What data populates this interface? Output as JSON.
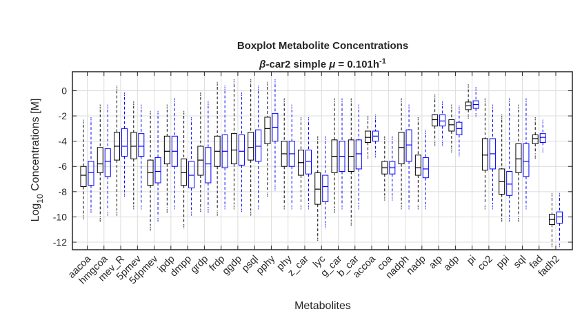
{
  "chart_data": {
    "type": "box",
    "title": "Boxplot Metabolite Concentrations",
    "subtitle": {
      "greek_prefix": "β",
      "text1": "-car2 simple ",
      "greek_mu": "μ",
      "text2": " = 0.101h",
      "superscript": "-1"
    },
    "xlabel": "Metabolites",
    "ylabel": {
      "prefix": "Log",
      "subscript": "10",
      "suffix": " Concentrations [M]"
    },
    "ylim": [
      -12.6,
      1.5
    ],
    "yticks": [
      0,
      -2,
      -4,
      -6,
      -8,
      -10,
      -12
    ],
    "grid": true,
    "series_colors": [
      "#000000",
      "#0000ff"
    ],
    "categories": [
      "aacoa",
      "hmgcoa",
      "mev_R",
      "5pmev",
      "5dpmev",
      "ipdp",
      "dmpp",
      "grdp",
      "frdp",
      "ggdp",
      "psql",
      "pphy",
      "phy",
      "z_car",
      "lyc",
      "g_car",
      "b_car",
      "accoa",
      "coa",
      "nadph",
      "nadp",
      "atp",
      "adp",
      "pi",
      "co2",
      "ppi",
      "sql",
      "fad",
      "fadh2"
    ],
    "series": [
      {
        "boxes": [
          {
            "low": -9.8,
            "q1": -7.6,
            "med": -6.7,
            "q3": -6.0,
            "high": -2.7
          },
          {
            "low": -10.0,
            "q1": -6.5,
            "med": -5.8,
            "q3": -4.5,
            "high": -1.5
          },
          {
            "low": -9.5,
            "q1": -5.5,
            "med": -4.4,
            "q3": -3.3,
            "high": 0.0
          },
          {
            "low": -9.0,
            "q1": -5.4,
            "med": -4.4,
            "q3": -3.3,
            "high": -1.2
          },
          {
            "low": -10.7,
            "q1": -7.5,
            "med": -6.5,
            "q3": -5.5,
            "high": -2.0
          },
          {
            "low": -9.3,
            "q1": -5.8,
            "med": -4.8,
            "q3": -3.6,
            "high": -1.5
          },
          {
            "low": -10.5,
            "q1": -7.5,
            "med": -6.5,
            "q3": -5.4,
            "high": -2.0
          },
          {
            "low": -9.2,
            "q1": -6.7,
            "med": -5.5,
            "q3": -4.4,
            "high": -0.5
          },
          {
            "low": -9.5,
            "q1": -6.0,
            "med": -4.8,
            "q3": -3.6,
            "high": 0.3
          },
          {
            "low": -9.0,
            "q1": -5.8,
            "med": -4.7,
            "q3": -3.4,
            "high": 0.5
          },
          {
            "low": -9.5,
            "q1": -5.5,
            "med": -4.5,
            "q3": -3.3,
            "high": 0.5
          },
          {
            "low": -8.0,
            "q1": -4.2,
            "med": -3.0,
            "q3": -2.1,
            "high": 0.3
          },
          {
            "low": -9.0,
            "q1": -6.0,
            "med": -5.0,
            "q3": -4.0,
            "high": -1.0
          },
          {
            "low": -9.0,
            "q1": -6.7,
            "med": -5.7,
            "q3": -4.7,
            "high": -2.5
          },
          {
            "low": -11.5,
            "q1": -9.0,
            "med": -7.8,
            "q3": -6.5,
            "high": -4.0
          },
          {
            "low": -9.3,
            "q1": -6.5,
            "med": -5.2,
            "q3": -3.9,
            "high": -1.0
          },
          {
            "low": -10.3,
            "q1": -6.4,
            "med": -5.2,
            "q3": -3.9,
            "high": -1.0
          },
          {
            "low": -5.0,
            "q1": -4.1,
            "med": -3.7,
            "q3": -3.2,
            "high": -2.4
          },
          {
            "low": -8.3,
            "q1": -6.6,
            "med": -6.1,
            "q3": -5.6,
            "high": -4.0
          },
          {
            "low": -9.0,
            "q1": -5.8,
            "med": -4.5,
            "q3": -3.3,
            "high": -1.0
          },
          {
            "low": -9.0,
            "q1": -6.7,
            "med": -6.1,
            "q3": -5.1,
            "high": -2.5
          },
          {
            "low": -4.0,
            "q1": -2.8,
            "med": -2.3,
            "q3": -1.9,
            "high": -0.7
          },
          {
            "low": -4.5,
            "q1": -3.2,
            "med": -2.7,
            "q3": -2.3,
            "high": -1.5
          },
          {
            "low": -1.8,
            "q1": -1.5,
            "med": -1.2,
            "q3": -0.9,
            "high": 0.1
          },
          {
            "low": -9.0,
            "q1": -6.3,
            "med": -5.1,
            "q3": -3.8,
            "high": -1.0
          },
          {
            "low": -10.0,
            "q1": -8.2,
            "med": -7.2,
            "q3": -6.2,
            "high": -2.3
          },
          {
            "low": -10.0,
            "q1": -6.5,
            "med": -5.4,
            "q3": -4.2,
            "high": -1.5
          },
          {
            "low": -5.0,
            "q1": -4.2,
            "med": -3.8,
            "q3": -3.5,
            "high": -2.5
          },
          {
            "low": -12.0,
            "q1": -10.6,
            "med": -10.2,
            "q3": -9.8,
            "high": -8.5
          }
        ]
      },
      {
        "boxes": [
          {
            "low": -9.3,
            "q1": -7.5,
            "med": -6.5,
            "q3": -5.6,
            "high": -2.5
          },
          {
            "low": -9.5,
            "q1": -6.8,
            "med": -5.6,
            "q3": -4.6,
            "high": -1.5
          },
          {
            "low": -8.0,
            "q1": -5.2,
            "med": -4.4,
            "q3": -3.0,
            "high": -0.5
          },
          {
            "low": -9.0,
            "q1": -5.2,
            "med": -4.4,
            "q3": -3.4,
            "high": -1.5
          },
          {
            "low": -10.0,
            "q1": -7.3,
            "med": -6.4,
            "q3": -5.3,
            "high": -2.0
          },
          {
            "low": -9.0,
            "q1": -6.0,
            "med": -4.8,
            "q3": -3.6,
            "high": -1.0
          },
          {
            "low": -9.5,
            "q1": -7.7,
            "med": -6.7,
            "q3": -5.6,
            "high": -2.5
          },
          {
            "low": -9.3,
            "q1": -7.3,
            "med": -5.8,
            "q3": -4.5,
            "high": -1.2
          },
          {
            "low": -9.0,
            "q1": -6.1,
            "med": -4.8,
            "q3": -3.5,
            "high": 0.0
          },
          {
            "low": -9.2,
            "q1": -5.9,
            "med": -4.8,
            "q3": -3.5,
            "high": -0.5
          },
          {
            "low": -9.0,
            "q1": -5.6,
            "med": -4.4,
            "q3": -3.1,
            "high": 0.0
          },
          {
            "low": -7.5,
            "q1": -4.0,
            "med": -2.9,
            "q3": -1.8,
            "high": 0.5
          },
          {
            "low": -9.0,
            "q1": -6.0,
            "med": -5.0,
            "q3": -4.0,
            "high": -1.5
          },
          {
            "low": -9.0,
            "q1": -6.6,
            "med": -5.6,
            "q3": -4.7,
            "high": -2.5
          },
          {
            "low": -10.5,
            "q1": -8.8,
            "med": -7.6,
            "q3": -6.7,
            "high": -4.0
          },
          {
            "low": -9.0,
            "q1": -6.4,
            "med": -5.2,
            "q3": -4.0,
            "high": -1.0
          },
          {
            "low": -9.0,
            "q1": -6.2,
            "med": -5.0,
            "q3": -3.9,
            "high": -1.5
          },
          {
            "low": -4.9,
            "q1": -4.0,
            "med": -3.6,
            "q3": -3.2,
            "high": -2.3
          },
          {
            "low": -8.3,
            "q1": -6.6,
            "med": -6.1,
            "q3": -5.6,
            "high": -4.0
          },
          {
            "low": -9.0,
            "q1": -5.6,
            "med": -4.3,
            "q3": -3.1,
            "high": -1.5
          },
          {
            "low": -9.0,
            "q1": -6.9,
            "med": -6.2,
            "q3": -5.3,
            "high": -3.5
          },
          {
            "low": -4.0,
            "q1": -2.8,
            "med": -2.4,
            "q3": -1.9,
            "high": -1.2
          },
          {
            "low": -4.8,
            "q1": -3.5,
            "med": -3.0,
            "q3": -2.5,
            "high": -1.6
          },
          {
            "low": -1.7,
            "q1": -1.4,
            "med": -1.1,
            "q3": -0.8,
            "high": -0.1
          },
          {
            "low": -9.0,
            "q1": -6.2,
            "med": -5.0,
            "q3": -3.8,
            "high": -1.5
          },
          {
            "low": -10.0,
            "q1": -8.3,
            "med": -7.4,
            "q3": -6.4,
            "high": -1.0
          },
          {
            "low": -9.0,
            "q1": -6.8,
            "med": -5.6,
            "q3": -4.2,
            "high": -1.0
          },
          {
            "low": -4.5,
            "q1": -4.1,
            "med": -3.7,
            "q3": -3.4,
            "high": -2.7
          },
          {
            "low": -12.0,
            "q1": -10.5,
            "med": -10.0,
            "q3": -9.6,
            "high": -8.5
          }
        ]
      }
    ]
  }
}
